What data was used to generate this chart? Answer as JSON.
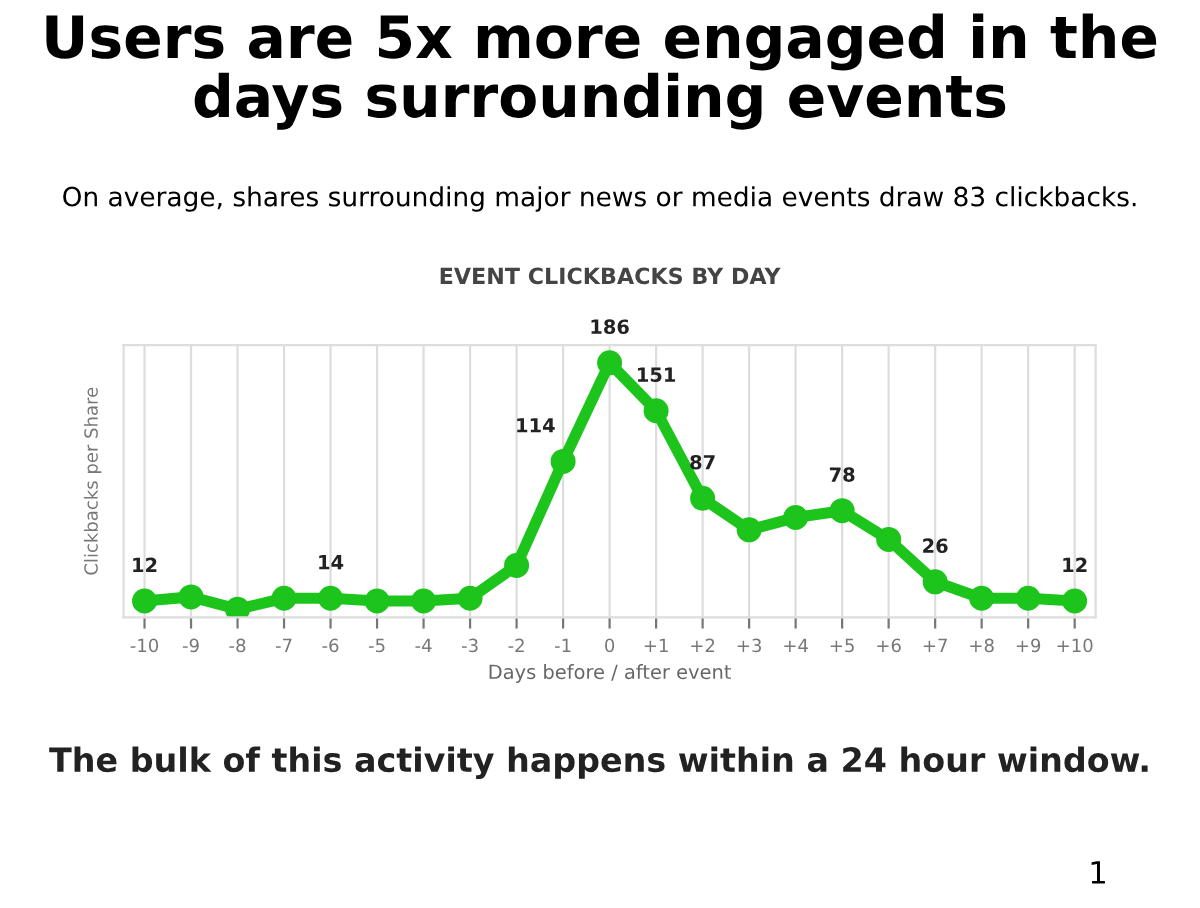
{
  "chart_data": {
    "type": "line",
    "title": "EVENT CLICKBACKS BY DAY",
    "xlabel": "Days before / after event",
    "ylabel": "Clickbacks per Share",
    "annotations": [
      "Users are 5x more engaged in the days surrounding events",
      "On average, shares surrounding major news or media events draw 83 clickbacks.",
      "The bulk of this activity happens within a 24 hour window.",
      "1"
    ],
    "categories": [
      "-10",
      "-9",
      "-8",
      "-7",
      "-6",
      "-5",
      "-4",
      "-3",
      "-2",
      "-1",
      "0",
      "+1",
      "+2",
      "+3",
      "+4",
      "+5",
      "+6",
      "+7",
      "+8",
      "+9",
      "+10"
    ],
    "series": [
      {
        "color": "#1cc41c",
        "values": [
          12,
          15,
          6,
          14,
          14,
          12,
          12,
          14,
          38,
          114,
          186,
          151,
          87,
          64,
          73,
          78,
          57,
          26,
          14,
          14,
          12
        ],
        "value_labels": [
          "12",
          null,
          null,
          null,
          "14",
          null,
          null,
          null,
          null,
          "114",
          "186",
          "151",
          "87",
          null,
          null,
          "78",
          null,
          "26",
          null,
          null,
          "12"
        ]
      }
    ],
    "ylim": [
      0,
      199
    ],
    "tick_labels": "x",
    "grid": "x",
    "marker": "circle",
    "line_style": "solid",
    "legend": false
  }
}
